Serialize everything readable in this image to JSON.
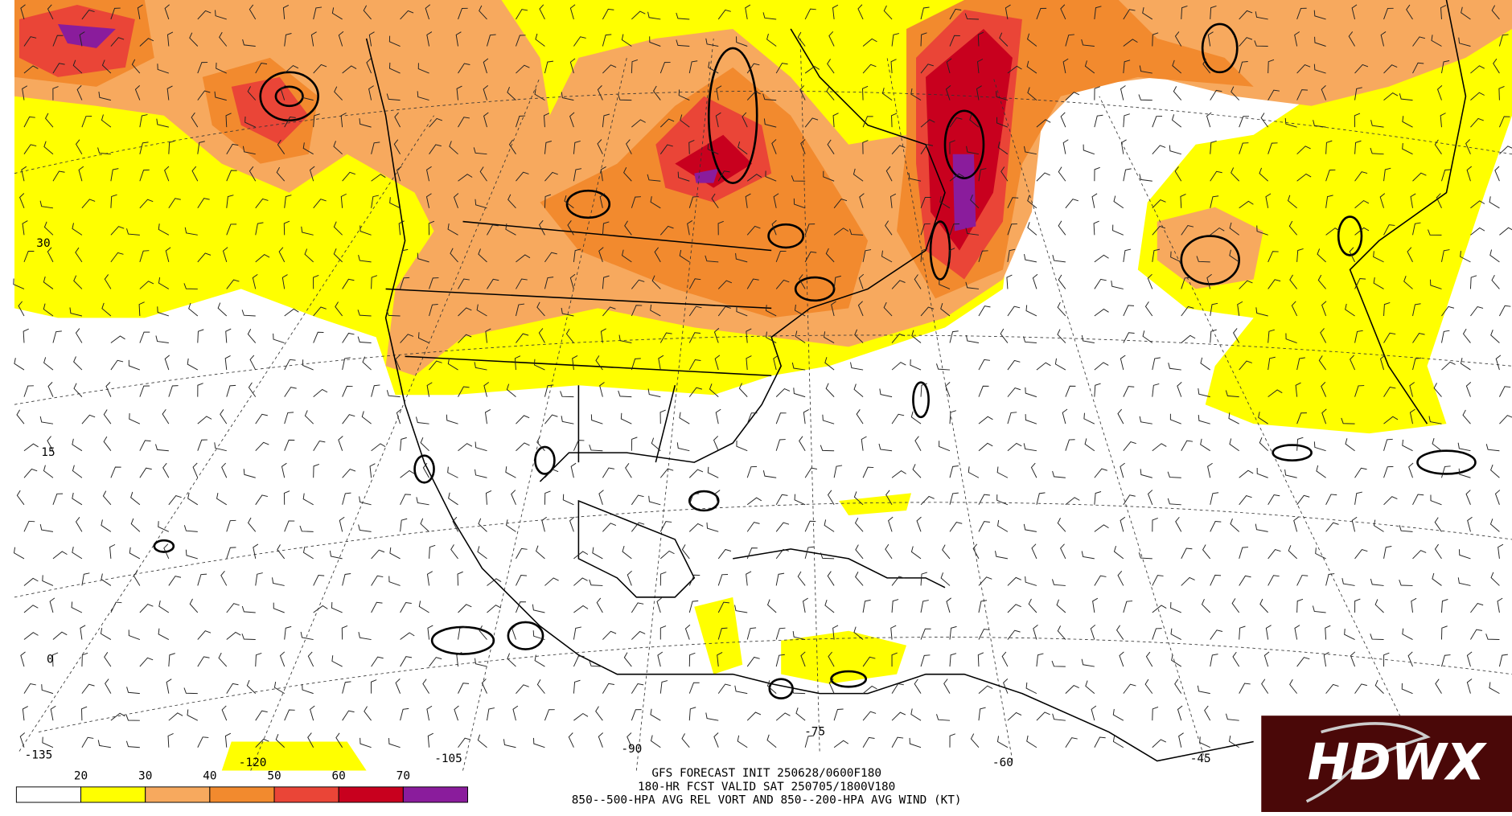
{
  "map": {
    "lat_labels": [
      "30",
      "15",
      "0"
    ],
    "lon_labels": [
      "-135",
      "-120",
      "-105",
      "-90",
      "-75",
      "-60",
      "-45"
    ],
    "caption": [
      "GFS FORECAST INIT 250628/0600F180",
      "180-HR FCST VALID SAT 250705/1800V180",
      "850--500-HPA AVG REL VORT AND 850--200-HPA AVG WIND (KT)"
    ]
  },
  "legend": {
    "labels": [
      "20",
      "30",
      "40",
      "50",
      "60",
      "70"
    ],
    "colors": [
      "#ffffff",
      "#ffff00",
      "#f7a95e",
      "#f28a2e",
      "#ea4537",
      "#c8001e",
      "#8a1c9c"
    ]
  },
  "logo": {
    "text": "HDWX"
  }
}
